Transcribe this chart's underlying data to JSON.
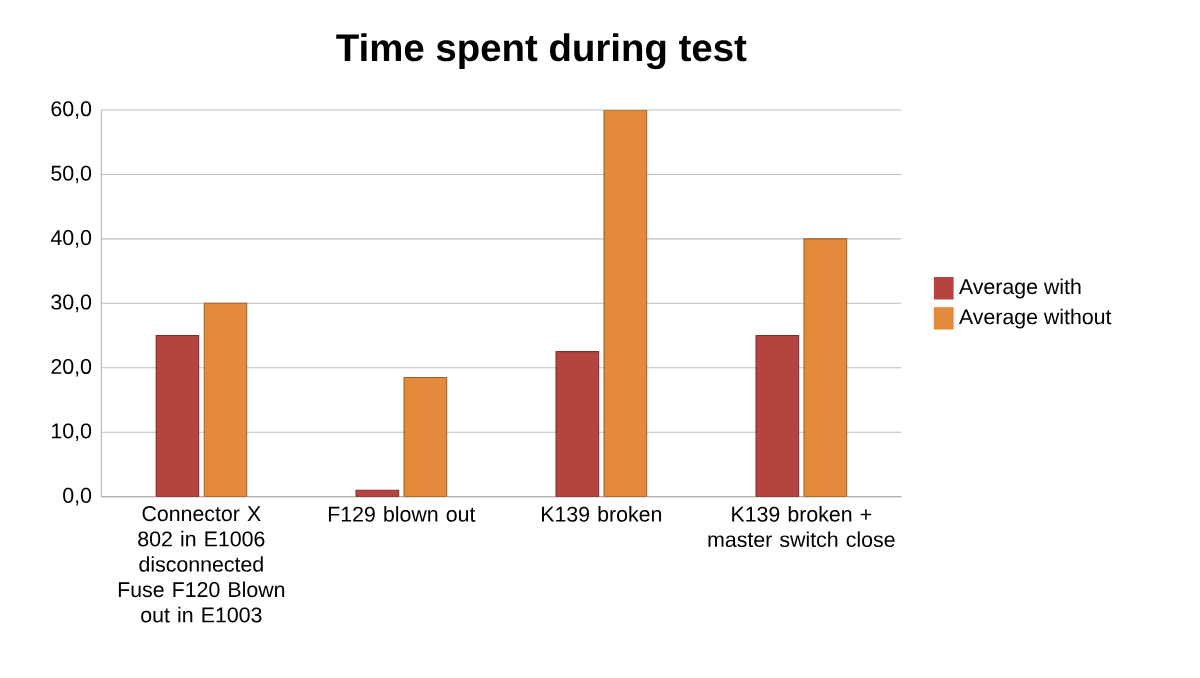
{
  "chart_data": {
    "type": "bar",
    "title": "Time spent during test",
    "categories": [
      "Connector X 802 in E1006 disconnected Fuse F120 Blown out in E1003",
      "F129 blown out",
      "K139 broken",
      "K139 broken + master switch close"
    ],
    "series": [
      {
        "name": "Average with",
        "color": "#b5443f",
        "values": [
          25,
          1,
          22.5,
          25
        ]
      },
      {
        "name": "Average without",
        "color": "#e38a3c",
        "values": [
          30,
          18.5,
          60,
          40
        ]
      }
    ],
    "ylim": [
      0,
      60
    ],
    "yticks": [
      {
        "value": 0,
        "label": "0,0"
      },
      {
        "value": 10,
        "label": "10,0"
      },
      {
        "value": 20,
        "label": "20,0"
      },
      {
        "value": 30,
        "label": "30,0"
      },
      {
        "value": 40,
        "label": "40,0"
      },
      {
        "value": 50,
        "label": "50,0"
      },
      {
        "value": 60,
        "label": "60,0"
      }
    ],
    "grid": "y",
    "legend": "right"
  }
}
